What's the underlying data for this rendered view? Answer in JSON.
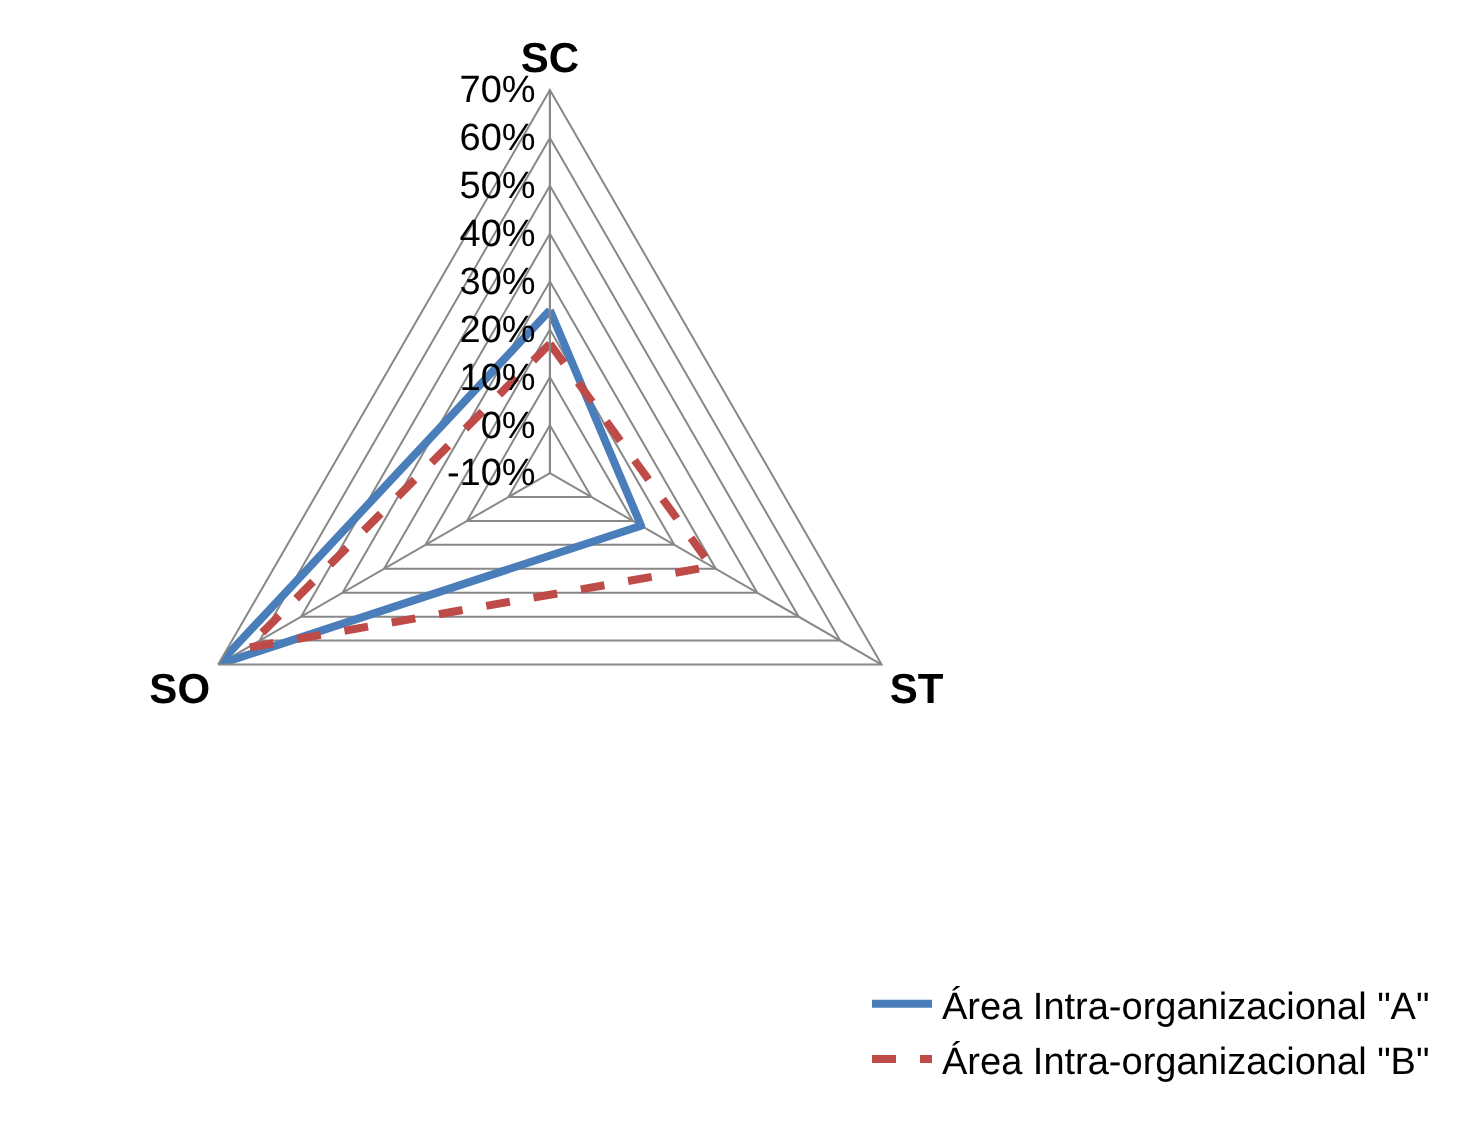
{
  "chart_data": {
    "type": "radar",
    "categories": [
      "SC",
      "ST",
      "SO"
    ],
    "series": [
      {
        "name": "Área Intra-organizacional \"A\"",
        "color": "#4a7ebb",
        "values": [
          24,
          12,
          70
        ],
        "line_style": "solid"
      },
      {
        "name": "Área Intra-organizacional \"B\"",
        "color": "#be4b48",
        "values": [
          17,
          29,
          63
        ],
        "line_style": "dashed"
      }
    ],
    "ylim": [
      -10,
      70
    ],
    "yticks": [
      {
        "value": -10,
        "label": "-10%"
      },
      {
        "value": 0,
        "label": "0%"
      },
      {
        "value": 10,
        "label": "10%"
      },
      {
        "value": 20,
        "label": "20%"
      },
      {
        "value": 30,
        "label": "30%"
      },
      {
        "value": 40,
        "label": "40%"
      },
      {
        "value": 50,
        "label": "50%"
      },
      {
        "value": 60,
        "label": "60%"
      },
      {
        "value": 70,
        "label": "70%"
      }
    ],
    "grid": true,
    "legend": "bottom right",
    "marker": "none"
  }
}
